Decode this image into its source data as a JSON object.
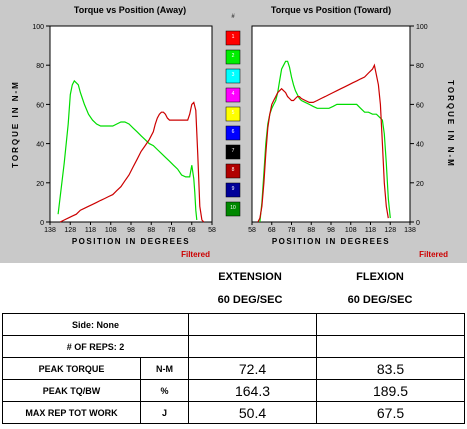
{
  "chart_data": [
    {
      "type": "line",
      "title": "Torque vs Position (Away)",
      "xlabel": "POSITION IN DEGREES",
      "ylabel": "TORQUE IN N-M",
      "note": "Filtered",
      "xlim": [
        138,
        58
      ],
      "ylim": [
        0,
        100
      ],
      "xticks": [
        "138",
        "128",
        "118",
        "108",
        "98",
        "88",
        "78",
        "68",
        "58"
      ],
      "yticks": [
        "0",
        "20",
        "40",
        "60",
        "80",
        "100"
      ],
      "series": [
        {
          "color": "#00dd00",
          "x": [
            134,
            131,
            129,
            128,
            127,
            126,
            125,
            124,
            123,
            122,
            121,
            119,
            117,
            115,
            113,
            111,
            109,
            107,
            105,
            103,
            101,
            99,
            97,
            95,
            93,
            91,
            89,
            87,
            85,
            83,
            81,
            79,
            77,
            75,
            73,
            71,
            69,
            68,
            67,
            66.5,
            66,
            65.5
          ],
          "y": [
            4,
            30,
            50,
            65,
            70,
            72,
            71,
            70,
            66,
            63,
            60,
            55,
            52,
            50,
            49,
            49,
            49,
            49,
            50,
            51,
            51,
            50,
            48,
            46,
            44,
            42,
            40,
            39,
            37,
            35,
            33,
            31,
            29,
            27,
            24,
            23,
            23,
            29,
            22,
            15,
            6,
            1
          ]
        },
        {
          "color": "#cc0000",
          "x": [
            133,
            131,
            129,
            127,
            125,
            123,
            121,
            119,
            117,
            115,
            113,
            111,
            109,
            107,
            105,
            103,
            101,
            99,
            97,
            95,
            93,
            91,
            89,
            87,
            86,
            85,
            84,
            83,
            82,
            81,
            80,
            79,
            78,
            76,
            74,
            72,
            70,
            69,
            68,
            67,
            66,
            65,
            64,
            63,
            62
          ],
          "y": [
            0,
            1,
            2,
            3,
            4,
            6,
            7,
            8,
            9,
            10,
            11,
            12,
            13,
            14,
            16,
            18,
            21,
            24,
            28,
            32,
            36,
            39,
            42,
            46,
            50,
            53,
            55,
            56,
            56,
            55,
            53,
            52,
            52,
            52,
            52,
            52,
            52,
            55,
            60,
            61,
            57,
            34,
            8,
            1,
            0
          ]
        }
      ]
    },
    {
      "type": "line",
      "title": "Torque vs Position (Toward)",
      "xlabel": "POSITION IN DEGREES",
      "ylabel": "TORQUE IN N-M",
      "note": "Filtered",
      "xlim": [
        58,
        138
      ],
      "ylim": [
        0,
        100
      ],
      "xticks": [
        "58",
        "68",
        "78",
        "88",
        "98",
        "108",
        "118",
        "128",
        "138"
      ],
      "yticks": [
        "0",
        "20",
        "40",
        "60",
        "80",
        "100"
      ],
      "series": [
        {
          "color": "#00dd00",
          "x": [
            62,
            63,
            64,
            65,
            66,
            67,
            68,
            69,
            70,
            71,
            72,
            73,
            74,
            75,
            76,
            77,
            78,
            79,
            80,
            81,
            82,
            83,
            85,
            87,
            89,
            91,
            93,
            95,
            97,
            99,
            101,
            103,
            105,
            107,
            109,
            111,
            113,
            115,
            117,
            119,
            121,
            123,
            124,
            125,
            126,
            127,
            128
          ],
          "y": [
            0,
            10,
            25,
            40,
            50,
            55,
            58,
            60,
            62,
            66,
            72,
            78,
            80,
            82,
            82,
            79,
            74,
            70,
            67,
            65,
            63,
            62,
            61,
            60,
            59,
            58,
            58,
            58,
            58,
            59,
            60,
            60,
            60,
            60,
            60,
            60,
            58,
            56,
            56,
            55,
            55,
            53,
            52,
            45,
            30,
            12,
            2
          ]
        },
        {
          "color": "#cc0000",
          "x": [
            61,
            62,
            63,
            64,
            65,
            66,
            67,
            68,
            69,
            70,
            71,
            72,
            73,
            74,
            75,
            76,
            77,
            78,
            79,
            80,
            81,
            82,
            83,
            85,
            87,
            89,
            91,
            93,
            95,
            97,
            99,
            101,
            103,
            105,
            107,
            109,
            111,
            113,
            115,
            117,
            119,
            120,
            121,
            122,
            123,
            124,
            125,
            126,
            127
          ],
          "y": [
            0,
            2,
            8,
            20,
            35,
            48,
            55,
            60,
            62,
            64,
            66,
            67,
            68,
            67,
            66,
            64,
            63,
            62,
            62,
            63,
            64,
            64,
            63,
            62,
            61,
            61,
            62,
            63,
            64,
            65,
            66,
            67,
            68,
            69,
            70,
            71,
            72,
            73,
            74,
            76,
            78,
            80,
            75,
            70,
            60,
            40,
            20,
            8,
            2
          ]
        }
      ]
    }
  ],
  "legend": {
    "title": "#",
    "items": [
      {
        "label": "1",
        "color": "#ff0000"
      },
      {
        "label": "2",
        "color": "#00ee00"
      },
      {
        "label": "3",
        "color": "#00ffff"
      },
      {
        "label": "4",
        "color": "#ff00ff"
      },
      {
        "label": "5",
        "color": "#ffff00"
      },
      {
        "label": "6",
        "color": "#0000ff"
      },
      {
        "label": "7",
        "color": "#000000"
      },
      {
        "label": "8",
        "color": "#b00000"
      },
      {
        "label": "9",
        "color": "#000099"
      },
      {
        "label": "10",
        "color": "#008800"
      }
    ]
  },
  "summary": {
    "extension_title": "EXTENSION",
    "extension_speed": "60 DEG/SEC",
    "flexion_title": "FLEXION",
    "flexion_speed": "60 DEG/SEC",
    "side": "Side: None",
    "reps": "# OF REPS: 2",
    "rows": [
      {
        "label": "PEAK TORQUE",
        "unit": "N-M",
        "extension": "72.4",
        "flexion": "83.5"
      },
      {
        "label": "PEAK TQ/BW",
        "unit": "%",
        "extension": "164.3",
        "flexion": "189.5"
      },
      {
        "label": "MAX REP TOT WORK",
        "unit": "J",
        "extension": "50.4",
        "flexion": "67.5"
      }
    ]
  }
}
